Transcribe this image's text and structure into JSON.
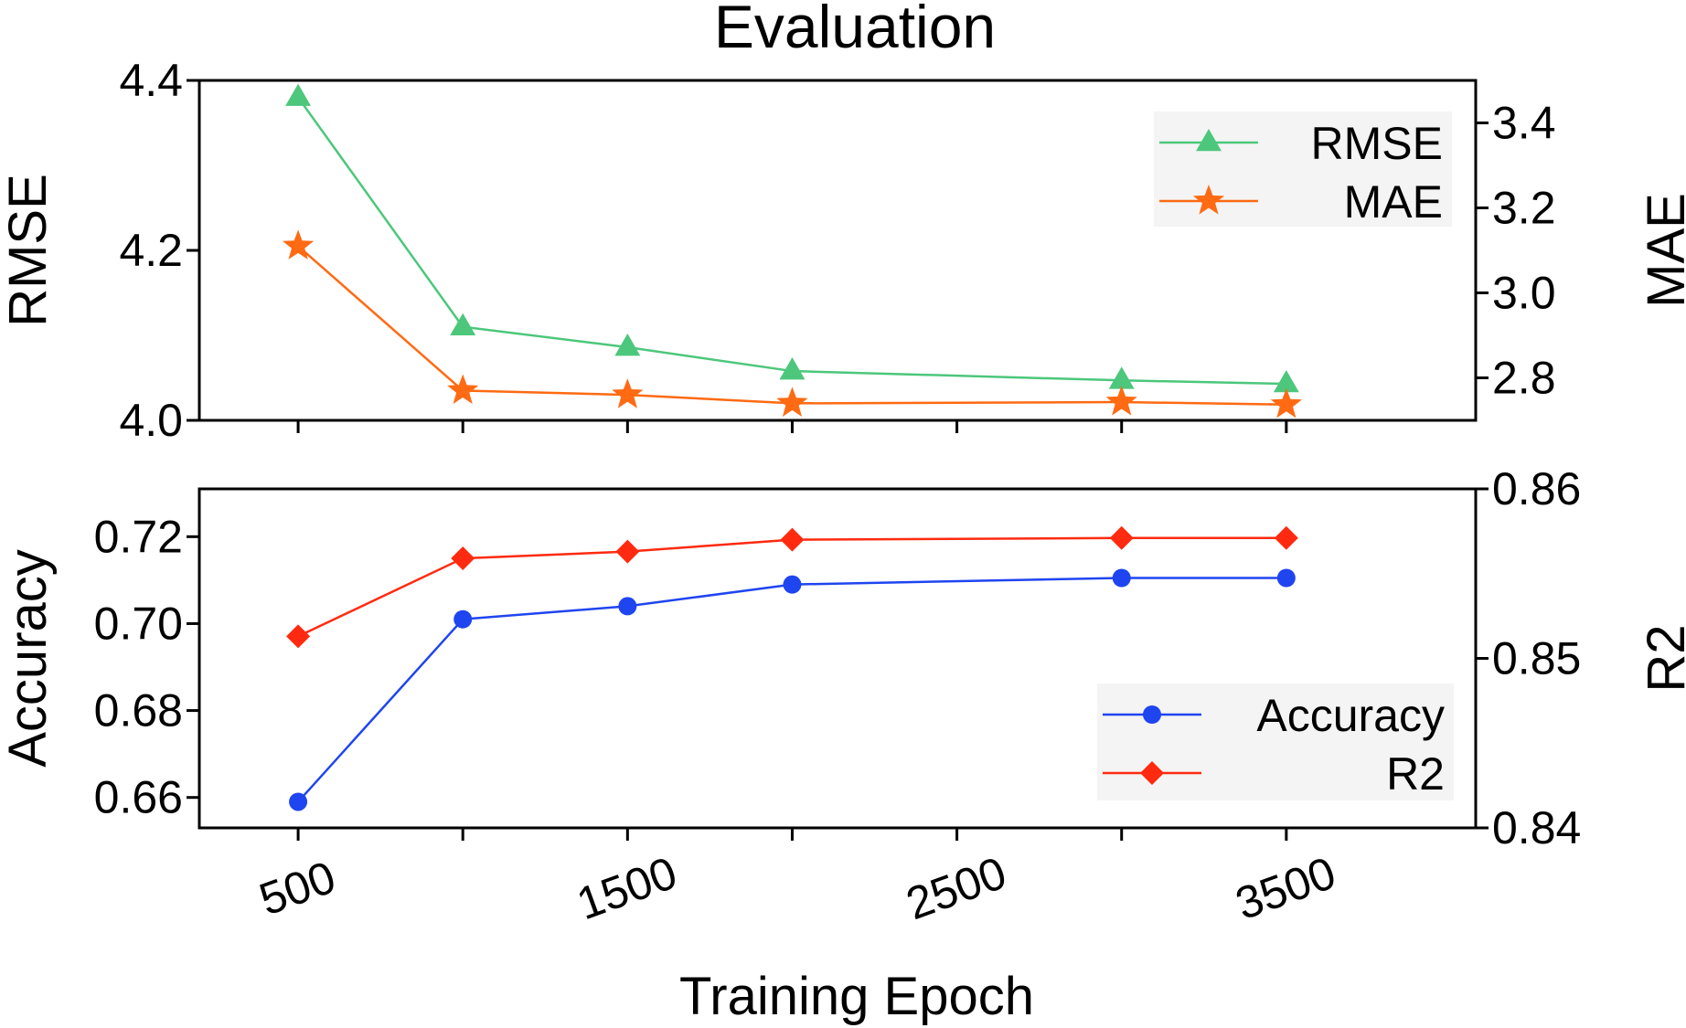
{
  "chart_data": {
    "title": "Evaluation",
    "xlabel": "Training Epoch",
    "x_ticks": [
      500,
      1500,
      2500,
      3500
    ],
    "x": [
      500,
      1000,
      1500,
      2000,
      3000,
      3500
    ],
    "panels": [
      {
        "type": "line",
        "left_axis": {
          "label": "RMSE",
          "range": [
            4.0,
            4.4
          ],
          "ticks": [
            "4.0",
            "4.2",
            "4.4"
          ]
        },
        "right_axis": {
          "label": "MAE",
          "range": [
            2.7,
            3.5
          ],
          "ticks": [
            "2.8",
            "3.0",
            "3.2",
            "3.4"
          ]
        },
        "series": [
          {
            "name": "RMSE",
            "axis": "left",
            "marker": "triangle",
            "color": "#4cc77b",
            "values": [
              4.38,
              4.11,
              4.086,
              4.058,
              4.047,
              4.043
            ]
          },
          {
            "name": "MAE",
            "axis": "right",
            "marker": "star",
            "color": "#ff6a13",
            "values": [
              3.11,
              2.77,
              2.76,
              2.74,
              2.743,
              2.737
            ]
          }
        ],
        "legend_position": "top-right"
      },
      {
        "type": "line",
        "left_axis": {
          "label": "Accuracy",
          "range": [
            0.653,
            0.731
          ],
          "ticks": [
            "0.66",
            "0.68",
            "0.70",
            "0.72"
          ]
        },
        "right_axis": {
          "label": "R2",
          "range": [
            0.84,
            0.86
          ],
          "ticks": [
            "0.84",
            "0.85",
            "0.86"
          ]
        },
        "series": [
          {
            "name": "Accuracy",
            "axis": "left",
            "marker": "circle",
            "color": "#1f45f0",
            "values": [
              0.659,
              0.701,
              0.704,
              0.709,
              0.7105,
              0.7105
            ]
          },
          {
            "name": "R2",
            "axis": "right",
            "marker": "diamond",
            "color": "#ff2a0f",
            "values": [
              0.8513,
              0.8559,
              0.8563,
              0.857,
              0.8571,
              0.8571
            ]
          }
        ],
        "legend_position": "bottom-right"
      }
    ]
  }
}
